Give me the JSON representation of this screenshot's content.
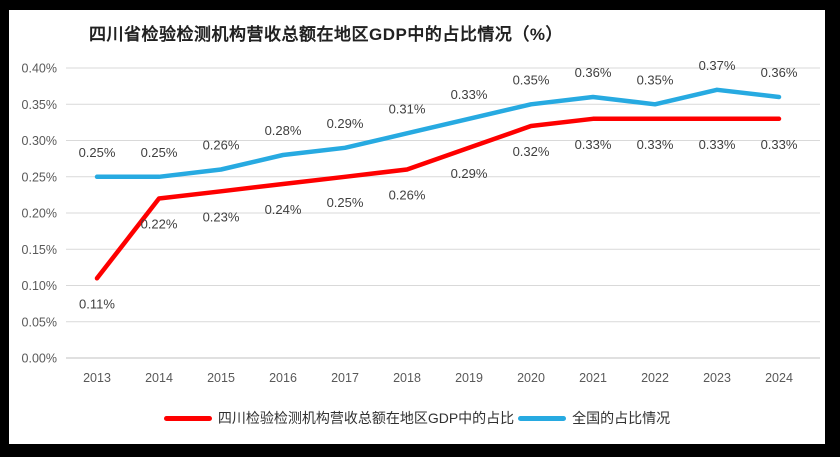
{
  "title": "四川省检验检测机构营收总额在地区GDP中的占比情况（%）",
  "colors": {
    "frame": "#000000",
    "panel_bg": "#ffffff",
    "grid": "#d9d9d9",
    "axis": "#c0c0c0",
    "tick_text": "#595959",
    "data_label_text": "#3f3f3f",
    "title_text": "#212121",
    "sichuan_line": "#fe0000",
    "national_line": "#27aae1"
  },
  "chart_data": {
    "type": "line",
    "title": "四川省检验检测机构营收总额在地区GDP中的占比情况（%）",
    "unit": "%",
    "categories": [
      "2013",
      "2014",
      "2015",
      "2016",
      "2017",
      "2018",
      "2019",
      "2020",
      "2021",
      "2022",
      "2023",
      "2024"
    ],
    "series": [
      {
        "id": "sichuan",
        "name": "四川检验检测机构营收总额在地区GDP中的占比",
        "color": "#fe0000",
        "label_position": "below",
        "values": [
          0.11,
          0.22,
          0.23,
          0.24,
          0.25,
          0.26,
          0.29,
          0.32,
          0.33,
          0.33,
          0.33,
          0.33
        ],
        "labels": [
          "0.11%",
          "0.22%",
          "0.23%",
          "0.24%",
          "0.25%",
          "0.26%",
          "0.29%",
          "0.32%",
          "0.33%",
          "0.33%",
          "0.33%",
          "0.33%"
        ]
      },
      {
        "id": "national",
        "name": "全国的占比情况",
        "color": "#27aae1",
        "label_position": "above",
        "values": [
          0.25,
          0.25,
          0.26,
          0.28,
          0.29,
          0.31,
          0.33,
          0.35,
          0.36,
          0.35,
          0.37,
          0.36
        ],
        "labels": [
          "0.25%",
          "0.25%",
          "0.26%",
          "0.28%",
          "0.29%",
          "0.31%",
          "0.33%",
          "0.35%",
          "0.36%",
          "0.35%",
          "0.37%",
          "0.36%"
        ]
      }
    ],
    "xlabel": "",
    "ylabel": "",
    "ylim": [
      0,
      0.4
    ],
    "ytick_step": 0.05,
    "yticks": [
      "0.00%",
      "0.05%",
      "0.10%",
      "0.15%",
      "0.20%",
      "0.25%",
      "0.30%",
      "0.35%",
      "0.40%"
    ],
    "grid": true,
    "legend_position": "bottom"
  }
}
